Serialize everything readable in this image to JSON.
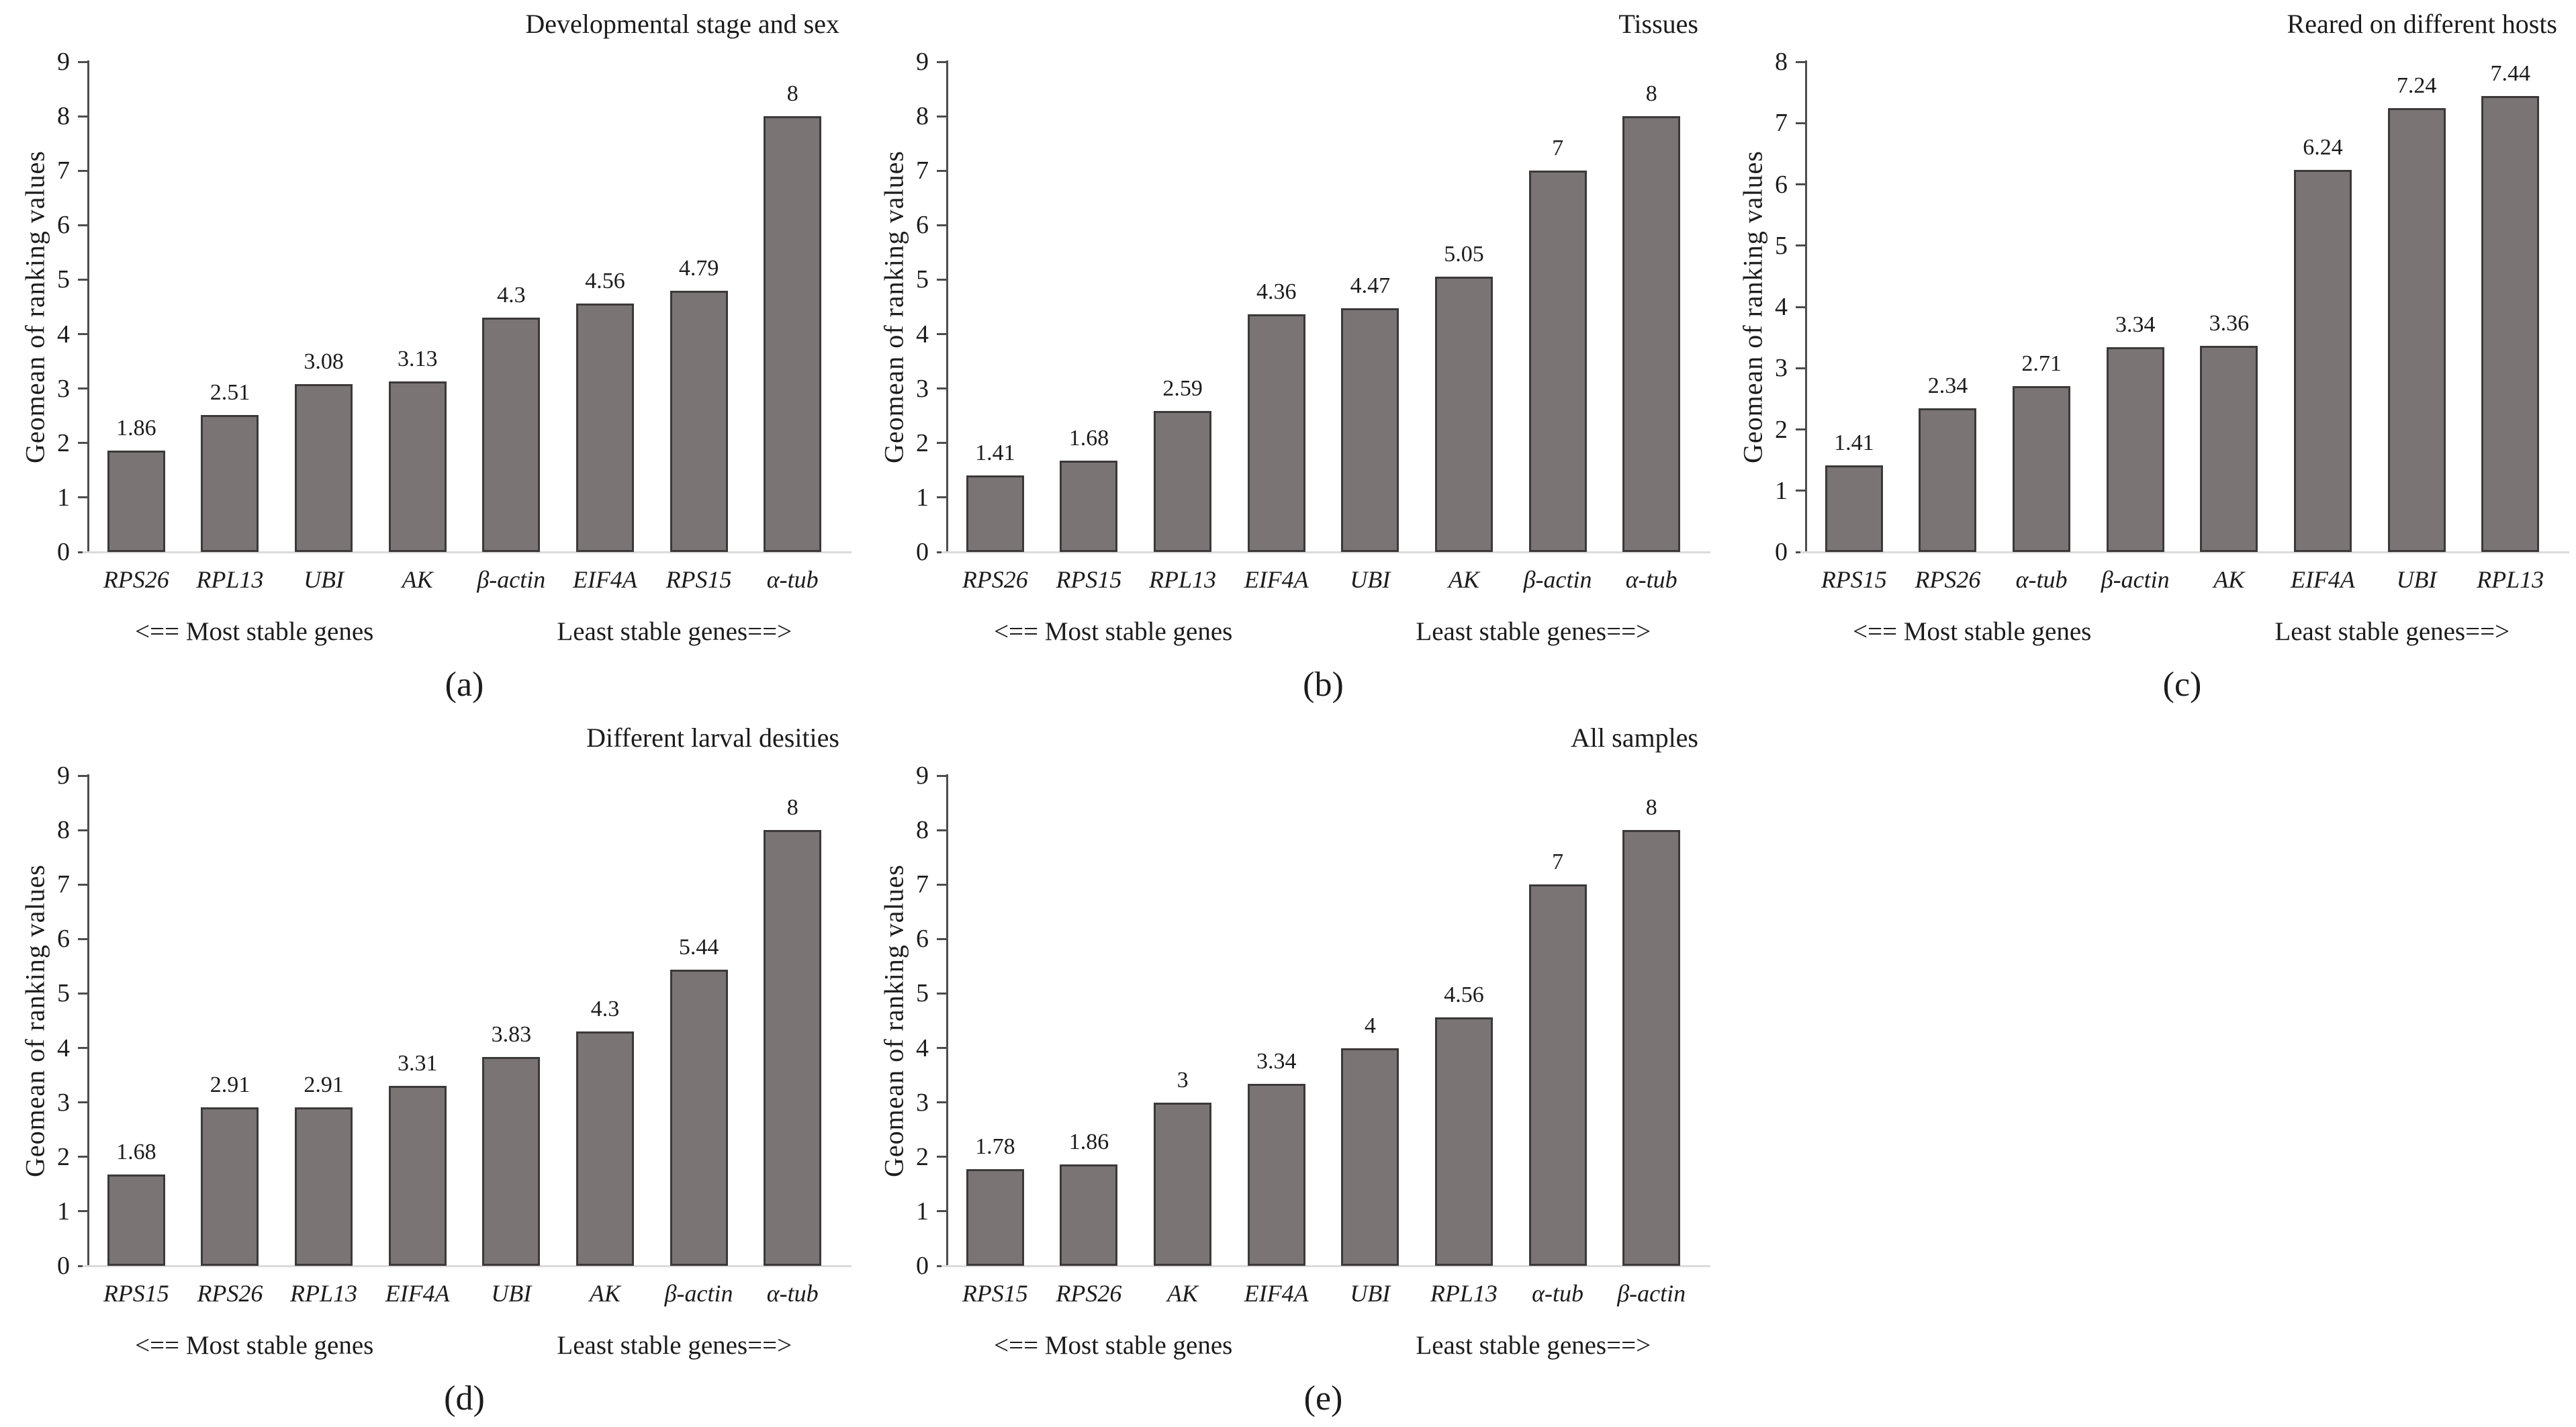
{
  "figure": {
    "ylabel": "Geomean of ranking values",
    "note_left": "<== Most stable genes",
    "note_right": "Least stable genes==>"
  },
  "colors": {
    "bar_fill": "#7a7474",
    "bar_border": "#3b3939",
    "axis": "#4d4d4d",
    "baseline": "#dcdada",
    "text": "#1c1c1c"
  },
  "chart_data": [
    {
      "type": "bar",
      "id": "a",
      "title": "Developmental stage and sex",
      "ylabel": "Geomean of ranking values",
      "ylim": [
        0,
        9
      ],
      "yticks": [
        0,
        1,
        2,
        3,
        4,
        5,
        6,
        7,
        8,
        9
      ],
      "grid": false,
      "legend": "none",
      "categories": [
        "RPS26",
        "RPL13",
        "UBI",
        "AK",
        "β-actin",
        "EIF4A",
        "RPS15",
        "α-tub"
      ],
      "values": [
        1.86,
        2.51,
        3.08,
        3.13,
        4.3,
        4.56,
        4.79,
        8
      ],
      "value_labels": [
        "1.86",
        "2.51",
        "3.08",
        "3.13",
        "4.3",
        "4.56",
        "4.79",
        "8"
      ],
      "note_left": "<== Most stable genes",
      "note_right": "Least stable genes==>",
      "caption": "(a)"
    },
    {
      "type": "bar",
      "id": "b",
      "title": "Tissues",
      "ylabel": "Geomean of ranking values",
      "ylim": [
        0,
        9
      ],
      "yticks": [
        0,
        1,
        2,
        3,
        4,
        5,
        6,
        7,
        8,
        9
      ],
      "grid": false,
      "legend": "none",
      "categories": [
        "RPS26",
        "RPS15",
        "RPL13",
        "EIF4A",
        "UBI",
        "AK",
        "β-actin",
        "α-tub"
      ],
      "values": [
        1.41,
        1.68,
        2.59,
        4.36,
        4.47,
        5.05,
        7,
        8
      ],
      "value_labels": [
        "1.41",
        "1.68",
        "2.59",
        "4.36",
        "4.47",
        "5.05",
        "7",
        "8"
      ],
      "note_left": "<== Most stable genes",
      "note_right": "Least stable genes==>",
      "caption": "(b)"
    },
    {
      "type": "bar",
      "id": "c",
      "title": "Reared on different hosts",
      "ylabel": "Geomean of ranking values",
      "ylim": [
        0,
        8
      ],
      "yticks": [
        0,
        1,
        2,
        3,
        4,
        5,
        6,
        7,
        8
      ],
      "grid": false,
      "legend": "none",
      "categories": [
        "RPS15",
        "RPS26",
        "α-tub",
        "β-actin",
        "AK",
        "EIF4A",
        "UBI",
        "RPL13"
      ],
      "values": [
        1.41,
        2.34,
        2.71,
        3.34,
        3.36,
        6.24,
        7.24,
        7.44
      ],
      "value_labels": [
        "1.41",
        "2.34",
        "2.71",
        "3.34",
        "3.36",
        "6.24",
        "7.24",
        "7.44"
      ],
      "note_left": "<== Most stable genes",
      "note_right": "Least stable genes==>",
      "caption": "(c)"
    },
    {
      "type": "bar",
      "id": "d",
      "title": "Different larval desities",
      "ylabel": "Geomean of ranking values",
      "ylim": [
        0,
        9
      ],
      "yticks": [
        0,
        1,
        2,
        3,
        4,
        5,
        6,
        7,
        8,
        9
      ],
      "grid": false,
      "legend": "none",
      "categories": [
        "RPS15",
        "RPS26",
        "RPL13",
        "EIF4A",
        "UBI",
        "AK",
        "β-actin",
        "α-tub"
      ],
      "values": [
        1.68,
        2.91,
        2.91,
        3.31,
        3.83,
        4.3,
        5.44,
        8
      ],
      "value_labels": [
        "1.68",
        "2.91",
        "2.91",
        "3.31",
        "3.83",
        "4.3",
        "5.44",
        "8"
      ],
      "note_left": "<== Most stable genes",
      "note_right": "Least stable genes==>",
      "caption": "(d)"
    },
    {
      "type": "bar",
      "id": "e",
      "title": "All samples",
      "ylabel": "Geomean of ranking values",
      "ylim": [
        0,
        9
      ],
      "yticks": [
        0,
        1,
        2,
        3,
        4,
        5,
        6,
        7,
        8,
        9
      ],
      "grid": false,
      "legend": "none",
      "categories": [
        "RPS15",
        "RPS26",
        "AK",
        "EIF4A",
        "UBI",
        "RPL13",
        "α-tub",
        "β-actin"
      ],
      "values": [
        1.78,
        1.86,
        3,
        3.34,
        4,
        4.56,
        7,
        8
      ],
      "value_labels": [
        "1.78",
        "1.86",
        "3",
        "3.34",
        "4",
        "4.56",
        "7",
        "8"
      ],
      "note_left": "<== Most stable genes",
      "note_right": "Least stable genes==>",
      "caption": "(e)"
    }
  ]
}
